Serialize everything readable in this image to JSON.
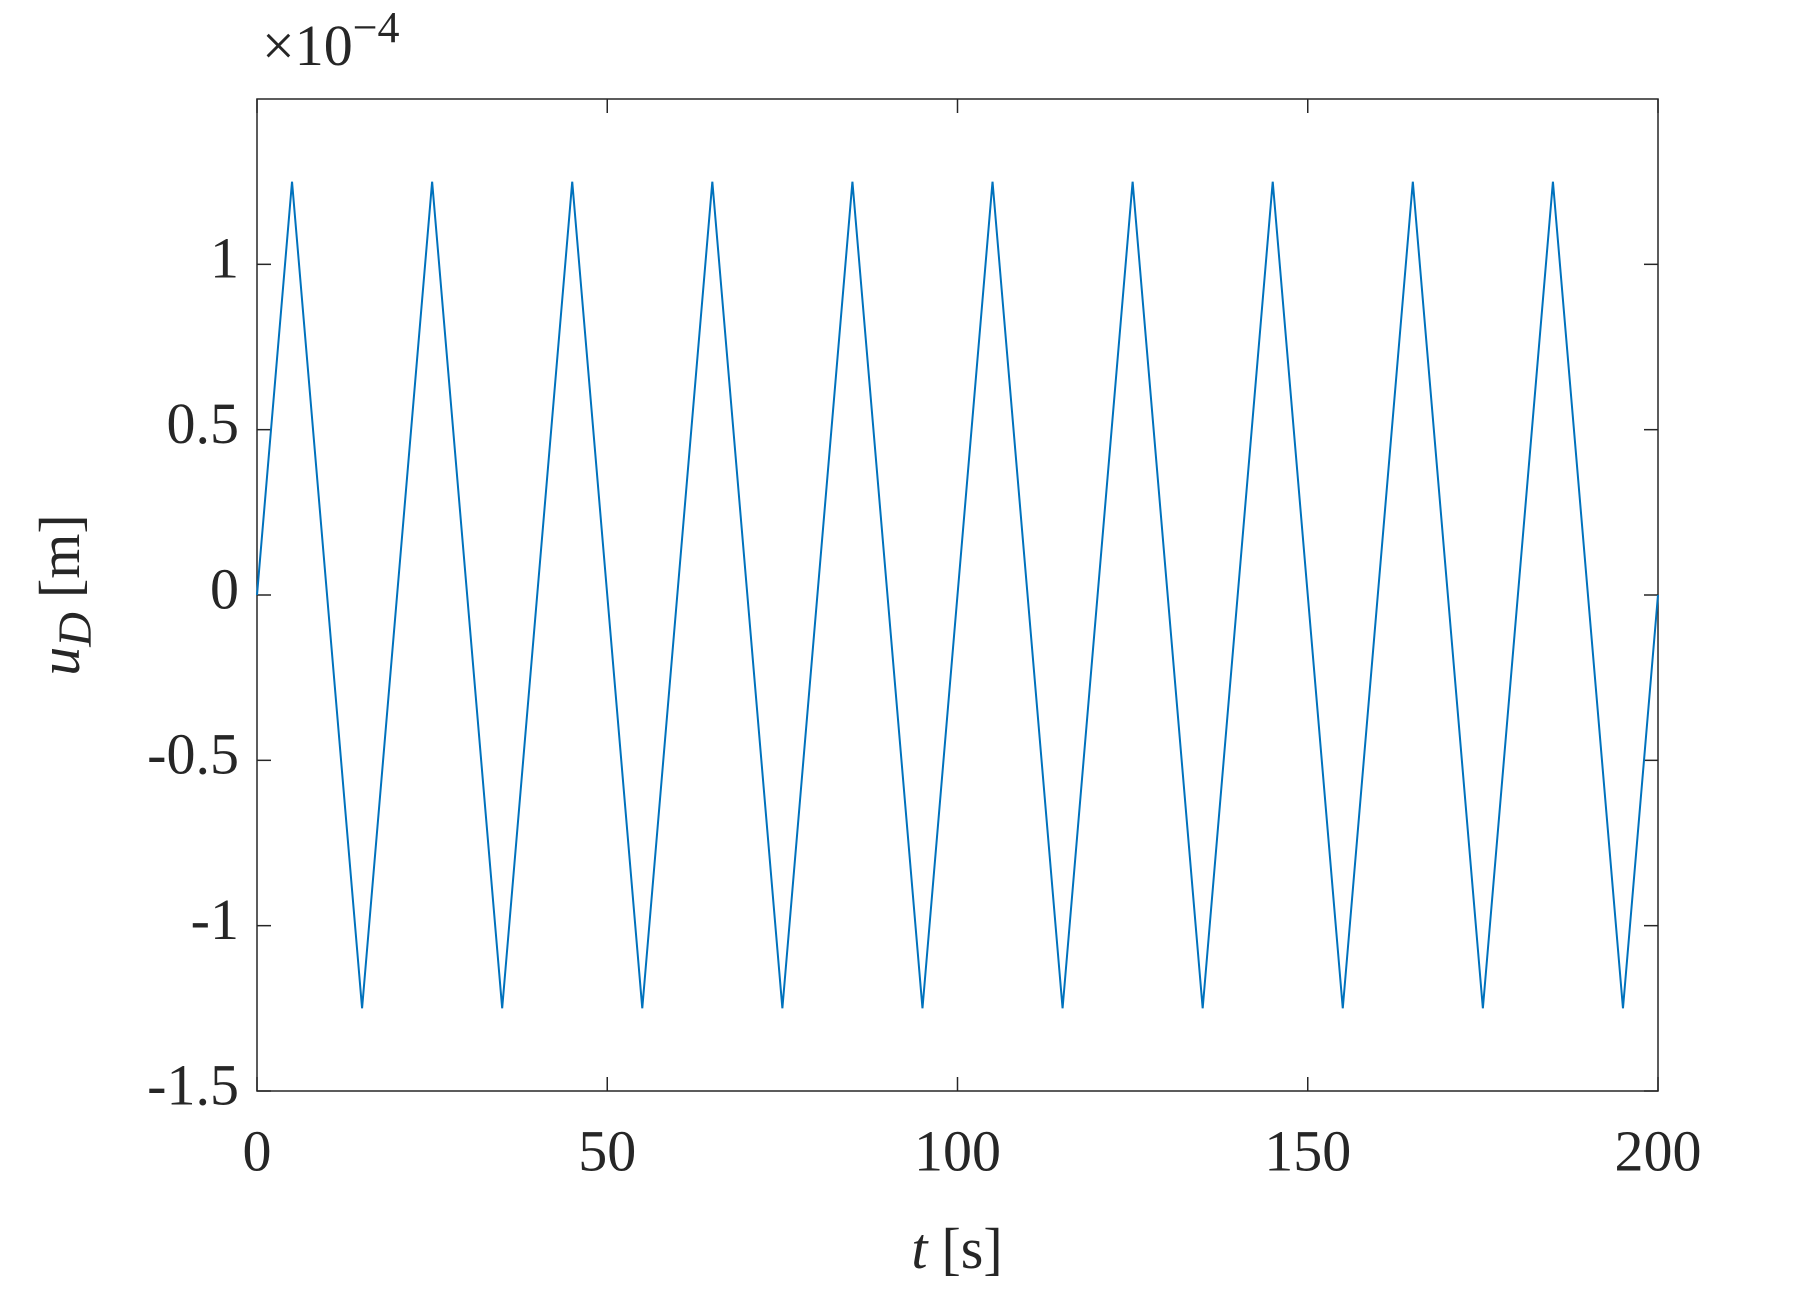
{
  "chart_data": {
    "type": "line",
    "multiplier": {
      "base": "×10",
      "exponent": "−4"
    },
    "xlabel": {
      "symbol": "t",
      "unit": "[s]"
    },
    "ylabel": {
      "symbol": "u",
      "subscript": "D",
      "unit": "[m]"
    },
    "x": [
      0,
      5,
      15,
      25,
      35,
      45,
      55,
      65,
      75,
      85,
      95,
      105,
      115,
      125,
      135,
      145,
      155,
      165,
      175,
      185,
      195,
      200
    ],
    "series": [
      {
        "color": "#0072bd",
        "values": [
          0,
          1.25,
          -1.25,
          1.25,
          -1.25,
          1.25,
          -1.25,
          1.25,
          -1.25,
          1.25,
          -1.25,
          1.25,
          -1.25,
          1.25,
          -1.25,
          1.25,
          -1.25,
          1.25,
          -1.25,
          1.25,
          -1.25,
          0
        ]
      }
    ],
    "xlim": [
      0,
      200
    ],
    "xticks": [
      0,
      50,
      100,
      150,
      200
    ],
    "ylim": [
      -1.5,
      1.5
    ],
    "yticks": [
      -1.5,
      -1,
      -0.5,
      0,
      0.5,
      1
    ],
    "grid": false
  }
}
